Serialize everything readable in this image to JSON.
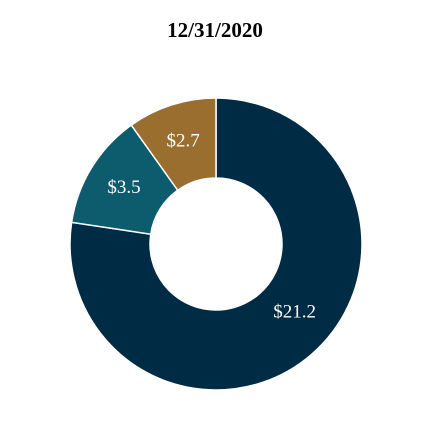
{
  "chart_data": {
    "type": "pie",
    "variant": "donut",
    "title": "12/31/2020",
    "slices": [
      {
        "label": "$21.2",
        "value": 21.2,
        "color": "#002b44"
      },
      {
        "label": "$3.5",
        "value": 3.5,
        "color": "#0d5c6e"
      },
      {
        "label": "$2.7",
        "value": 2.7,
        "color": "#9a6e2e"
      }
    ]
  }
}
